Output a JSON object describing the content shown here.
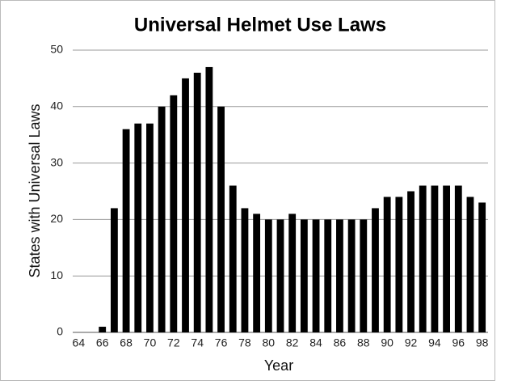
{
  "chart_data": {
    "type": "bar",
    "title": "Universal Helmet Use Laws",
    "x_label": "Year",
    "y_label": "States with Universal Laws",
    "categories": [
      "64",
      null,
      "66",
      null,
      "68",
      null,
      "70",
      null,
      "72",
      null,
      "74",
      null,
      "76",
      null,
      "78",
      null,
      "80",
      null,
      "82",
      null,
      "84",
      null,
      "86",
      null,
      "88",
      null,
      "90",
      null,
      "92",
      null,
      "94",
      null,
      "96",
      null,
      "98"
    ],
    "values": [
      0,
      0,
      1,
      22,
      36,
      37,
      37,
      40,
      42,
      45,
      46,
      47,
      40,
      26,
      22,
      21,
      20,
      20,
      21,
      20,
      20,
      20,
      20,
      20,
      20,
      22,
      24,
      24,
      25,
      26,
      26,
      26,
      26,
      24,
      23
    ],
    "color": "#000000",
    "ylim": [
      0,
      50
    ],
    "yticks": [
      0,
      10,
      20,
      30,
      40,
      50
    ],
    "grid": true
  }
}
